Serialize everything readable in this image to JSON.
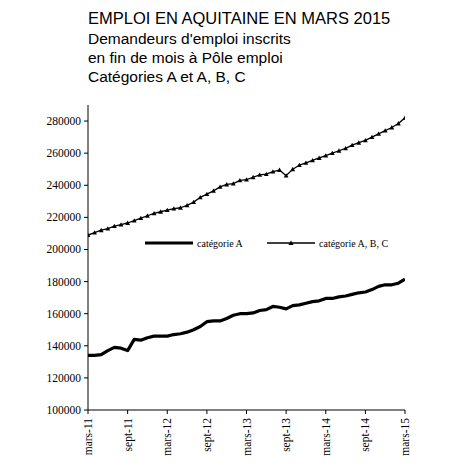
{
  "chart_data": {
    "type": "line",
    "title": "EMPLOI EN AQUITAINE EN MARS 2015",
    "subtitle": [
      "Demandeurs d'emploi inscrits",
      "en fin de mois à Pôle emploi",
      "Catégories A et A, B, C"
    ],
    "categories": [
      "mars-11",
      null,
      null,
      null,
      null,
      null,
      "sept-11",
      null,
      null,
      null,
      null,
      null,
      "mars-12",
      null,
      null,
      null,
      null,
      null,
      "sept-12",
      null,
      null,
      null,
      null,
      null,
      "mars-13",
      null,
      null,
      null,
      null,
      null,
      "sept-13",
      null,
      null,
      null,
      null,
      null,
      "mars-14",
      null,
      null,
      null,
      null,
      null,
      "sept-14",
      null,
      null,
      null,
      null,
      null,
      "mars-15"
    ],
    "series": [
      {
        "name": "catégorie A",
        "color": "#000000",
        "marker": "none",
        "line_style": "solid",
        "values": [
          134000,
          134000,
          134500,
          137000,
          139000,
          138500,
          137000,
          144000,
          143500,
          145000,
          146000,
          146000,
          146000,
          147000,
          147500,
          148500,
          150000,
          152000,
          155000,
          155500,
          155500,
          157000,
          159000,
          160000,
          160000,
          160500,
          162000,
          162500,
          164500,
          164000,
          163000,
          165000,
          165500,
          166500,
          167500,
          168000,
          169500,
          169500,
          170500,
          171000,
          172000,
          173000,
          173500,
          175000,
          177000,
          178000,
          178000,
          179000,
          181500
        ]
      },
      {
        "name": "catégorie A, B, C",
        "color": "#000000",
        "marker": "triangle",
        "line_style": "solid",
        "values": [
          209000,
          210500,
          212000,
          213000,
          214500,
          215500,
          216500,
          218000,
          219500,
          221000,
          222500,
          223500,
          224500,
          225500,
          226000,
          227500,
          229500,
          232500,
          234500,
          236500,
          239000,
          240500,
          241000,
          243000,
          243500,
          245000,
          246500,
          247000,
          248500,
          249500,
          246000,
          250000,
          252500,
          254000,
          255500,
          257000,
          258500,
          260000,
          261500,
          263000,
          265000,
          266500,
          268000,
          270000,
          272000,
          274000,
          276000,
          278500,
          282000
        ]
      }
    ],
    "ylim": [
      100000,
      290000
    ],
    "yticks": [
      100000,
      120000,
      140000,
      160000,
      180000,
      200000,
      220000,
      240000,
      260000,
      280000
    ],
    "grid": false,
    "legend": "center"
  }
}
